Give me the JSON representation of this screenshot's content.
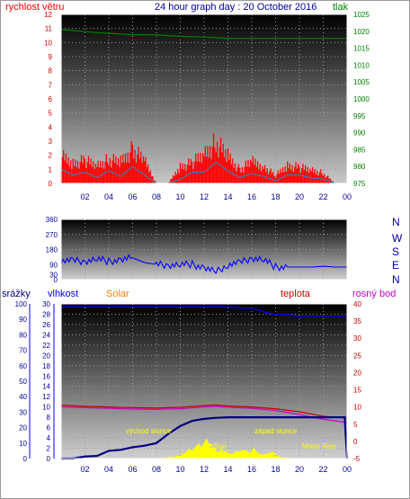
{
  "header": {
    "wind_label": "rychlost větru",
    "title": "24 hour graph day : 20 October 2016",
    "pressure_label": "tlak"
  },
  "compass": [
    "N",
    "W",
    "S",
    "E",
    "N"
  ],
  "legend": {
    "rain": "srážky",
    "humidity": "vlhkost",
    "solar": "Solar",
    "temperature": "teplota",
    "dewpoint": "rosný bod"
  },
  "annotations": {
    "sunrise": "východ slunce",
    "sunset": "západ slunce",
    "moonrise": "Moon Rise",
    "sun": "Sun"
  },
  "colors": {
    "wind": "#ff0000",
    "gust": "#1a8fd0",
    "pressure": "#008000",
    "direction": "#0000ff",
    "humidity": "#0000ff",
    "temperature": "#cc0000",
    "dewpoint": "#cc00cc",
    "rain": "#000080",
    "solar": "#ffff00",
    "title": "#0000a0",
    "solar_label": "#ff8000",
    "temp_axis": "#cc0000"
  },
  "chart_data": [
    {
      "id": "wind_pressure",
      "type": "line",
      "x_ticks": [
        "02",
        "04",
        "06",
        "08",
        "10",
        "12",
        "14",
        "16",
        "18",
        "20",
        "22",
        "00"
      ],
      "y_left": {
        "label": "rychlost větru",
        "range": [
          0,
          12
        ],
        "ticks": [
          "0",
          "1",
          "2",
          "3",
          "4",
          "5",
          "6",
          "7",
          "8",
          "9",
          "10",
          "11",
          "12"
        ]
      },
      "y_right": {
        "label": "tlak",
        "range": [
          975,
          1025
        ],
        "ticks": [
          "975",
          "980",
          "985",
          "990",
          "995",
          "1000",
          "1005",
          "1010",
          "1015",
          "1020",
          "1025"
        ]
      },
      "grid": true,
      "series": [
        {
          "name": "rychlost větru",
          "axis": "left",
          "style": "gust-bars",
          "x": [
            0,
            1,
            2,
            3,
            4,
            5,
            6,
            7,
            8,
            9,
            10,
            11,
            12,
            13,
            14,
            15,
            16,
            17,
            18,
            19,
            20,
            21,
            22,
            23,
            24
          ],
          "values": [
            2.4,
            1.8,
            2.0,
            1.6,
            2.1,
            1.9,
            3.0,
            2.0,
            0,
            0,
            1.5,
            1.8,
            2.6,
            3.6,
            2.4,
            1.2,
            1.9,
            1.5,
            0.7,
            1.6,
            1.4,
            1.2,
            0.9,
            0,
            0
          ]
        },
        {
          "name": "gust",
          "axis": "left",
          "x": [
            0,
            1,
            2,
            3,
            4,
            5,
            6,
            7,
            8,
            9,
            10,
            11,
            12,
            13,
            14,
            15,
            16,
            17,
            18,
            19,
            20,
            21,
            22,
            23,
            24
          ],
          "values": [
            1.0,
            0.6,
            0.8,
            0.4,
            0.9,
            0.5,
            1.2,
            0.6,
            0,
            0,
            0.3,
            0.8,
            0.8,
            1.5,
            0.9,
            0.4,
            0.7,
            0.5,
            0.2,
            0.6,
            0.6,
            0.4,
            0.3,
            0,
            0
          ]
        },
        {
          "name": "tlak",
          "axis": "right",
          "x": [
            0,
            1,
            2,
            3,
            4,
            5,
            6,
            7,
            8,
            9,
            10,
            11,
            12,
            13,
            14,
            15,
            16,
            17,
            18,
            19,
            20,
            21,
            22,
            23,
            24
          ],
          "values": [
            1020.5,
            1020.2,
            1019.9,
            1019.6,
            1019.4,
            1019.2,
            1019.0,
            1019.0,
            1018.9,
            1018.7,
            1018.5,
            1018.4,
            1018.3,
            1018.1,
            1017.9,
            1017.9,
            1017.9,
            1017.9,
            1017.9,
            1017.9,
            1017.9,
            1017.9,
            1017.9,
            1017.9,
            1017.9
          ]
        }
      ]
    },
    {
      "id": "wind_direction",
      "type": "line",
      "x_ticks": [],
      "y_left": {
        "label": "",
        "range": [
          0,
          360
        ],
        "ticks": [
          "0",
          "30",
          "90",
          "180",
          "270",
          "360"
        ]
      },
      "grid": true,
      "series": [
        {
          "name": "direction",
          "x": [
            0,
            1,
            2,
            3,
            4,
            5,
            6,
            7,
            8,
            9,
            10,
            11,
            12,
            13,
            14,
            15,
            16,
            17,
            18,
            19,
            20,
            21,
            22,
            23,
            24
          ],
          "values": [
            115,
            112,
            110,
            125,
            108,
            118,
            130,
            102,
            90,
            88,
            90,
            92,
            70,
            45,
            90,
            100,
            130,
            120,
            75,
            75,
            75,
            75,
            80,
            75,
            75
          ]
        }
      ]
    },
    {
      "id": "temp_humidity_rain_solar",
      "type": "line",
      "x_ticks": [
        "02",
        "04",
        "06",
        "08",
        "10",
        "12",
        "14",
        "16",
        "18",
        "20",
        "22",
        "00"
      ],
      "y_left_rain": {
        "label": "srážky",
        "range": [
          0,
          30
        ],
        "ticks": [
          "0",
          "2",
          "4",
          "6",
          "8",
          "10",
          "12",
          "14",
          "16",
          "18",
          "20",
          "22",
          "24",
          "26",
          "28",
          "30"
        ]
      },
      "y_left_humidity": {
        "label": "vlhkost",
        "range": [
          0,
          100
        ],
        "ticks": [
          "0",
          "10",
          "20",
          "30",
          "40",
          "50",
          "60",
          "70",
          "80",
          "90",
          "100"
        ]
      },
      "y_right": {
        "label": "teplota",
        "range": [
          -5,
          40
        ],
        "ticks": [
          "-5",
          "0",
          "5",
          "10",
          "15",
          "20",
          "25",
          "30",
          "35",
          "40"
        ]
      },
      "grid": true,
      "series": [
        {
          "name": "vlhkost",
          "axis": "humidity",
          "x": [
            0,
            2,
            4,
            6,
            8,
            10,
            12,
            14,
            16,
            17,
            18,
            19,
            20,
            22,
            24
          ],
          "values": [
            98,
            98,
            98,
            98,
            98,
            98,
            98,
            98,
            97,
            95,
            93,
            93,
            92,
            92,
            92
          ]
        },
        {
          "name": "teplota",
          "axis": "temperature",
          "x": [
            0,
            2,
            4,
            6,
            8,
            10,
            12,
            13,
            14,
            16,
            18,
            20,
            22,
            24
          ],
          "values": [
            10.5,
            10.2,
            10.0,
            9.8,
            9.7,
            9.9,
            10.4,
            10.6,
            10.3,
            10.0,
            9.5,
            8.6,
            7.3,
            6.8
          ]
        },
        {
          "name": "rosný bod",
          "axis": "temperature",
          "x": [
            0,
            2,
            4,
            6,
            8,
            10,
            12,
            13,
            14,
            16,
            18,
            20,
            22,
            24
          ],
          "values": [
            10.0,
            9.8,
            9.6,
            9.4,
            9.3,
            9.5,
            10.0,
            10.2,
            9.9,
            9.6,
            9.0,
            7.8,
            6.4,
            5.5
          ]
        },
        {
          "name": "srážky",
          "axis": "rain",
          "x": [
            0,
            1,
            2,
            3,
            4,
            5,
            6,
            7,
            8,
            9,
            10,
            11,
            12,
            13,
            14,
            15,
            16,
            17,
            18,
            19,
            20,
            21,
            22,
            23,
            23.8,
            24
          ],
          "values": [
            0,
            0,
            0.4,
            0.5,
            1.5,
            1.7,
            2.2,
            2.5,
            3.0,
            4.8,
            6.3,
            7.3,
            7.7,
            7.9,
            8.0,
            8.0,
            8.0,
            8.0,
            8.0,
            8.0,
            8.0,
            8.0,
            8.0,
            8.0,
            8.0,
            0
          ]
        },
        {
          "name": "Solar",
          "axis": "rain",
          "style": "area",
          "x": [
            0,
            8.5,
            9.5,
            10,
            10.5,
            11,
            11.5,
            12,
            12.3,
            12.6,
            13,
            13.3,
            13.6,
            14,
            14.5,
            15,
            15.5,
            16,
            16.5,
            17,
            17.3,
            17.6,
            18,
            18.5,
            19,
            24
          ],
          "values": [
            0,
            0,
            0.4,
            1,
            1.6,
            2.5,
            3.2,
            4.3,
            3.0,
            2.0,
            1.4,
            2.0,
            1.5,
            1.0,
            1.2,
            2.1,
            1.2,
            2.3,
            1.0,
            0.7,
            1.6,
            0.8,
            0.3,
            0.2,
            0,
            0
          ]
        }
      ]
    }
  ]
}
